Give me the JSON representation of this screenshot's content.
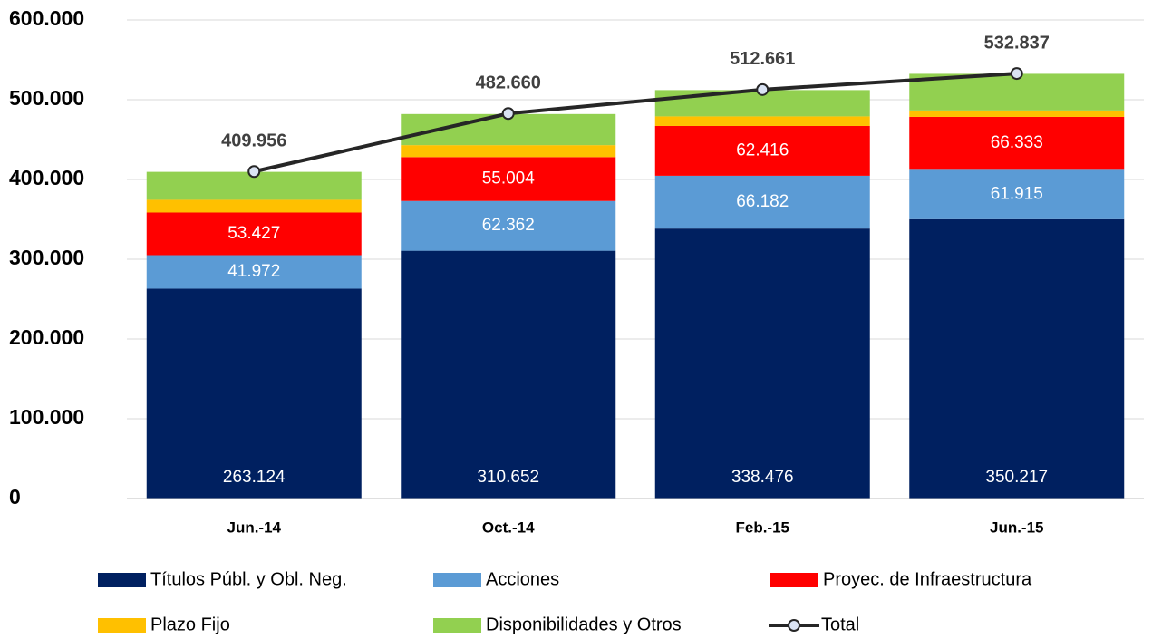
{
  "chart_data": {
    "type": "bar",
    "stacked": true,
    "categories": [
      "Jun.-14",
      "Oct.-14",
      "Feb.-15",
      "Jun.-15"
    ],
    "series": [
      {
        "name": "Títulos Públ. y Obl. Neg.",
        "color": "#002060",
        "values": [
          263124,
          310652,
          338476,
          350217
        ],
        "value_labels": [
          "263.124",
          "310.652",
          "338.476",
          "350.217"
        ]
      },
      {
        "name": "Acciones",
        "color": "#5b9bd5",
        "values": [
          41972,
          62362,
          66182,
          61915
        ],
        "value_labels": [
          "41.972",
          "62.362",
          "66.182",
          "61.915"
        ]
      },
      {
        "name": "Proyec. de Infraestructura",
        "color": "#ff0000",
        "values": [
          53427,
          55004,
          62416,
          66333
        ],
        "value_labels": [
          "53.427",
          "55.004",
          "62.416",
          "66.333"
        ]
      },
      {
        "name": "Plazo Fijo",
        "color": "#ffc000",
        "values": [
          16000,
          15000,
          12000,
          8000
        ]
      },
      {
        "name": "Disponibilidades y Otros",
        "color": "#92d050",
        "values": [
          35000,
          39000,
          33000,
          46000
        ]
      },
      {
        "name": "Total",
        "type": "line",
        "color": "#262626",
        "values": [
          409956,
          482660,
          512661,
          532837
        ],
        "value_labels": [
          "409.956",
          "482.660",
          "512.661",
          "532.837"
        ]
      }
    ],
    "ylim": [
      0,
      600000
    ],
    "yticks": [
      0,
      {
        "value": 100000,
        "label": "100.000"
      },
      {
        "value": 200000,
        "label": "200.000"
      },
      {
        "value": 300000,
        "label": "300.000"
      },
      {
        "value": 400000,
        "label": "400.000"
      },
      {
        "value": 500000,
        "label": "500.000"
      },
      {
        "value": 600000,
        "label": "600.000"
      }
    ],
    "grid": true
  }
}
